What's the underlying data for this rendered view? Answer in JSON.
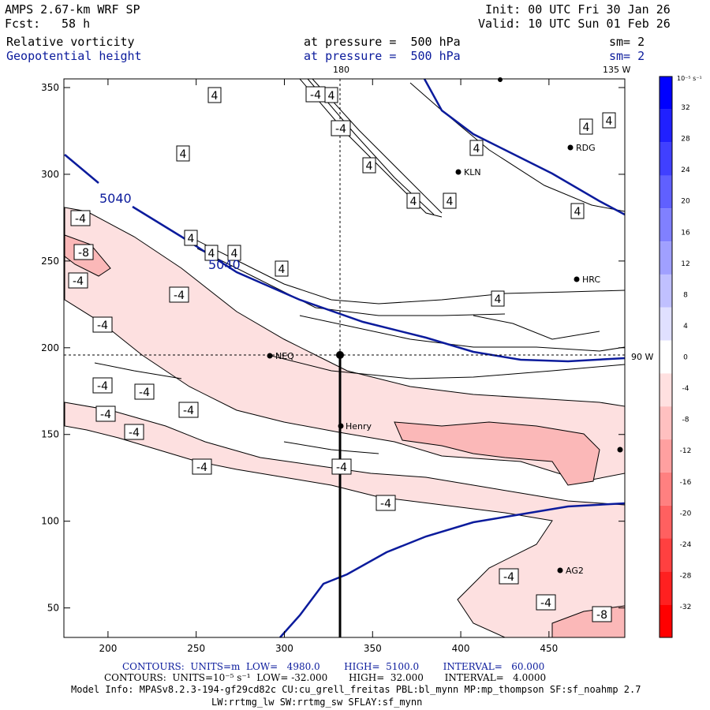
{
  "header": {
    "model": "AMPS 2.67-km WRF SP",
    "fcst_label": "Fcst:",
    "fcst_value": "58 h",
    "init": "Init: 00 UTC Fri 30 Jan 26",
    "valid": "Valid: 10 UTC Sun 01 Feb 26",
    "field1_name": "Relative vorticity",
    "field1_level": "at pressure =  500 hPa",
    "field1_sm": "sm= 2",
    "field2_name": "Geopotential height",
    "field2_level": "at pressure =  500 hPa",
    "field2_sm": "sm= 2"
  },
  "map_labels": {
    "top_180": "180",
    "top_135w": "135 W",
    "right_90w": "90 W"
  },
  "colorbar": {
    "title": "10⁻⁵ s⁻¹",
    "levels": [
      32,
      28,
      24,
      20,
      16,
      12,
      8,
      4,
      0,
      -4,
      -8,
      -12,
      -16,
      -20,
      -24,
      -28,
      -32
    ],
    "colors": [
      "#0000ff",
      "#2020ff",
      "#4040ff",
      "#6060ff",
      "#8080ff",
      "#a0a0ff",
      "#c0c0ff",
      "#e0e0ff",
      "#ffffff",
      "#ffe0e0",
      "#ffc0c0",
      "#ffa0a0",
      "#ff8080",
      "#ff6060",
      "#ff4040",
      "#ff2020",
      "#ff0000"
    ]
  },
  "stations": [
    {
      "name": "RDG"
    },
    {
      "name": "KLN"
    },
    {
      "name": "HRC"
    },
    {
      "name": "NEQ"
    },
    {
      "name": "Henry"
    },
    {
      "name": "AG2"
    }
  ],
  "contour_labels": [
    "4",
    "4",
    "4",
    "4",
    "4",
    "4",
    "4",
    "4",
    "4",
    "4",
    "4",
    "4",
    "4",
    "4",
    "4",
    "-4",
    "-4",
    "-4",
    "-4",
    "-4",
    "-4",
    "-4",
    "-4",
    "-4",
    "-4",
    "-4",
    "-4",
    "-4",
    "-4",
    "-4",
    "-4",
    "-8",
    "-8",
    "5040",
    "5040"
  ],
  "chart_data": {
    "type": "contour",
    "title": "Relative vorticity / Geopotential height at 500 hPa",
    "xlim": [
      175,
      493
    ],
    "ylim": [
      33,
      355
    ],
    "xticks": [
      200,
      250,
      300,
      350,
      400,
      450
    ],
    "yticks": [
      50,
      100,
      150,
      200,
      250,
      300,
      350
    ],
    "height_contour_level": 5040,
    "height_units": "m",
    "height_low": 4980.0,
    "height_high": 5100.0,
    "height_interval": 60.0,
    "vorticity_units": "10^-5 s^-1",
    "vorticity_low": -32.0,
    "vorticity_high": 32.0,
    "vorticity_interval": 4.0
  },
  "footer": {
    "contours1": "CONTOURS:  UNITS=m  LOW=   4980.0        HIGH=  5100.0        INTERVAL=   60.000",
    "contours2": "CONTOURS:  UNITS=10⁻⁵ s⁻¹  LOW= -32.000       HIGH=  32.000       INTERVAL=   4.0000",
    "model_info": "Model Info: MPASv8.2.3-194-gf29cd82c CU:cu_grell_freitas PBL:bl_mynn MP:mp_thompson SF:sf_noahmp 2.7",
    "model_info2": "LW:rrtmg_lw SW:rrtmg_sw SFLAY:sf_mynn"
  }
}
